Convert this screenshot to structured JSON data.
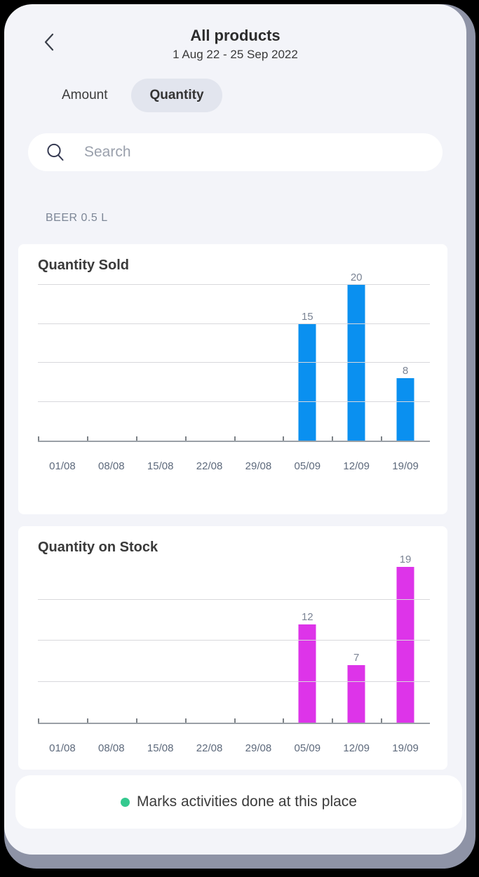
{
  "header": {
    "title": "All products",
    "subtitle": "1 Aug 22 - 25 Sep 2022",
    "back_icon": "chevron-left"
  },
  "tabs": [
    {
      "label": "Amount",
      "active": false
    },
    {
      "label": "Quantity",
      "active": true
    }
  ],
  "search": {
    "placeholder": "Search",
    "icon": "search-icon"
  },
  "section_label": "BEER 0.5 L",
  "chart_data": [
    {
      "type": "bar",
      "title": "Quantity Sold",
      "categories": [
        "01/08",
        "08/08",
        "15/08",
        "22/08",
        "29/08",
        "05/09",
        "12/09",
        "19/09"
      ],
      "values": [
        0,
        0,
        0,
        0,
        0,
        15,
        20,
        8
      ],
      "bar_color": "#0a90f0",
      "ylim": [
        0,
        20
      ],
      "gridlines": [
        5,
        10,
        15,
        20
      ],
      "grid": true,
      "value_labels": true
    },
    {
      "type": "bar",
      "title": "Quantity on Stock",
      "categories": [
        "01/08",
        "08/08",
        "15/08",
        "22/08",
        "29/08",
        "05/09",
        "12/09",
        "19/09"
      ],
      "values": [
        0,
        0,
        0,
        0,
        0,
        12,
        7,
        19
      ],
      "bar_color": "#dd34e9",
      "ylim": [
        0,
        19
      ],
      "gridlines": [
        5,
        10,
        15
      ],
      "grid": true,
      "value_labels": true
    }
  ],
  "footer": {
    "legend_text": "Marks activities done at this place",
    "dot_color": "#35c98f"
  },
  "colors": {
    "screen_bg": "#f3f4f9",
    "card_bg": "#ffffff",
    "bezel": "#8e93a6",
    "tab_pill": "#e2e5ee",
    "axis": "#9aa0a6",
    "gridline": "#d8d8dc",
    "bar_blue": "#0a90f0",
    "bar_magenta": "#dd34e9",
    "x_label": "#5e6a7c",
    "value_label": "#7b8494"
  }
}
